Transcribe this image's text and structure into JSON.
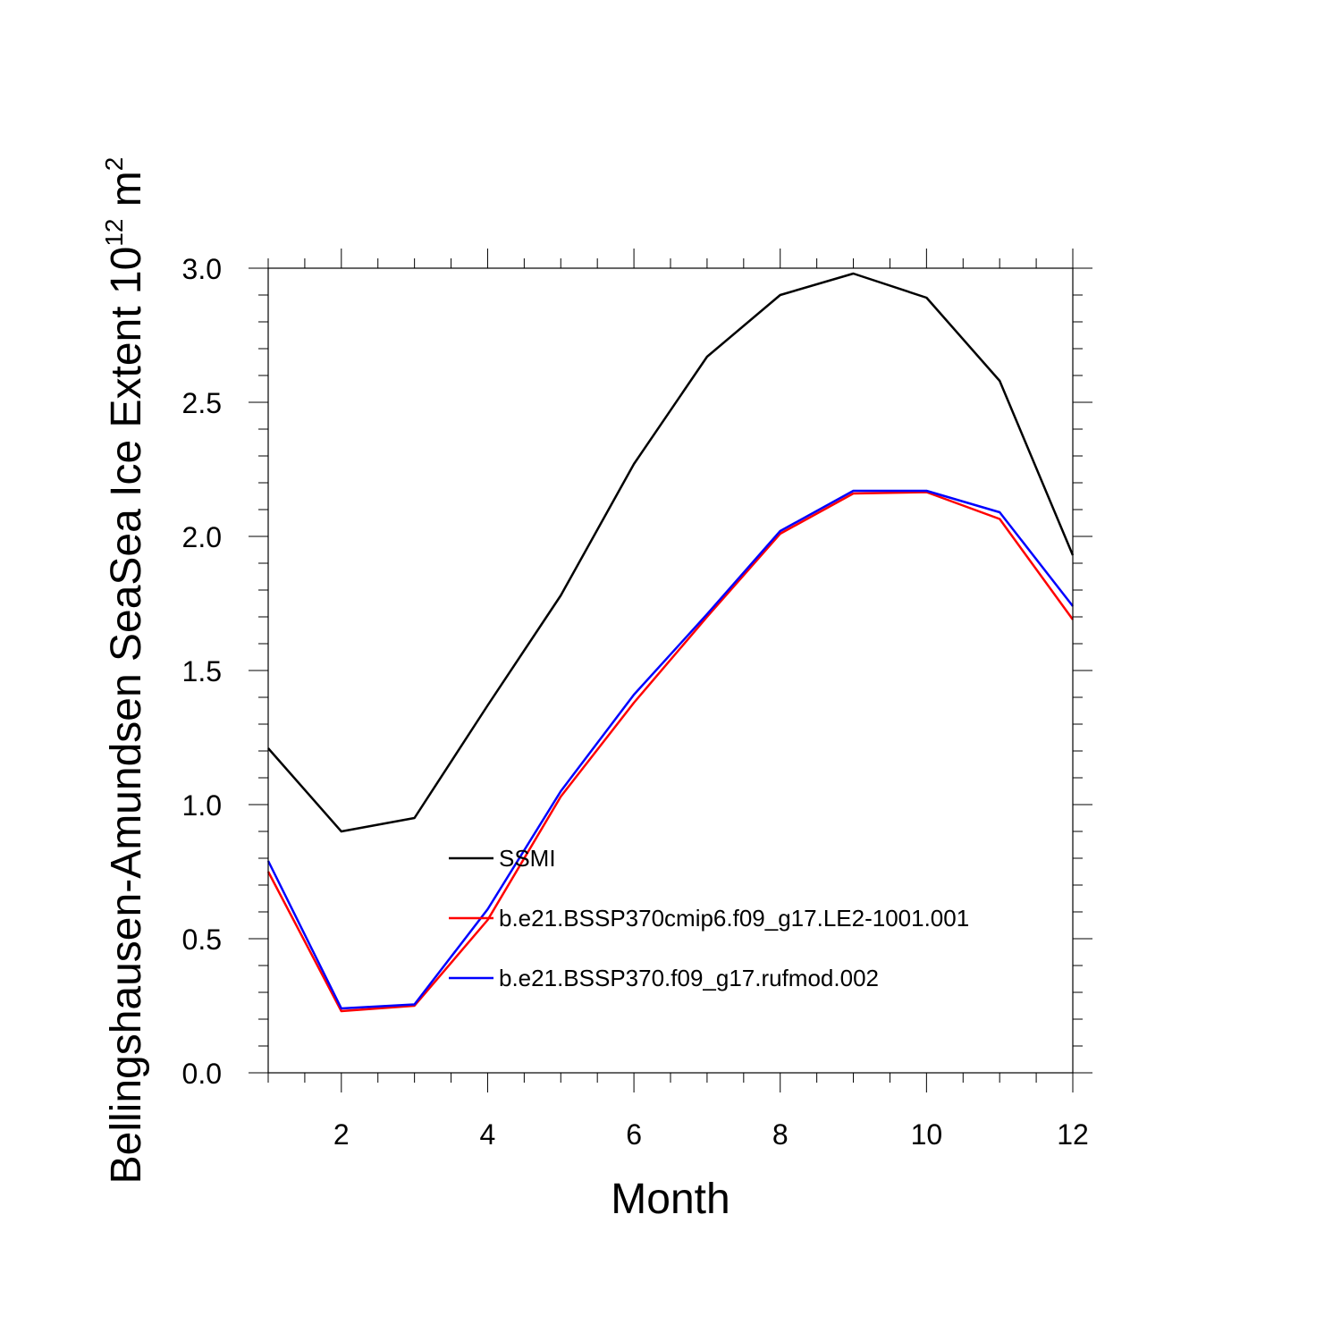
{
  "chart_data": {
    "type": "line",
    "xlabel": "Month",
    "ylabel_text": "Bellingshausen-Amundsen SeaSea Ice Extent 10",
    "ylabel_exponent": "12",
    "ylabel_unit": " m",
    "ylabel_unit_exponent": "2",
    "xlim": [
      1,
      12
    ],
    "ylim": [
      0,
      3
    ],
    "x_ticks": [
      2,
      4,
      6,
      8,
      10,
      12
    ],
    "x_tick_labels": [
      "2",
      "4",
      "6",
      "8",
      "10",
      "12"
    ],
    "y_ticks": [
      0,
      0.5,
      1,
      1.5,
      2,
      2.5,
      3
    ],
    "y_tick_labels": [
      "0.0",
      "0.5",
      "1.0",
      "1.5",
      "2.0",
      "2.5",
      "3.0"
    ],
    "legend_position": "center",
    "x": [
      1,
      2,
      3,
      4,
      5,
      6,
      7,
      8,
      9,
      10,
      11,
      12
    ],
    "series": [
      {
        "name": "SSMI",
        "color": "#000000",
        "values": [
          1.21,
          0.9,
          0.95,
          1.37,
          1.78,
          2.27,
          2.67,
          2.9,
          2.98,
          2.89,
          2.58,
          1.93
        ]
      },
      {
        "name": "b.e21.BSSP370cmip6.f09_g17.LE2-1001.001",
        "color": "#ff0000",
        "values": [
          0.75,
          0.23,
          0.25,
          0.57,
          1.03,
          1.38,
          1.7,
          2.01,
          2.16,
          2.165,
          2.065,
          1.69
        ]
      },
      {
        "name": "b.e21.BSSP370.f09_g17.rufmod.002",
        "color": "#0000ff",
        "values": [
          0.79,
          0.24,
          0.255,
          0.61,
          1.05,
          1.41,
          1.71,
          2.02,
          2.17,
          2.17,
          2.09,
          1.74
        ]
      }
    ]
  }
}
